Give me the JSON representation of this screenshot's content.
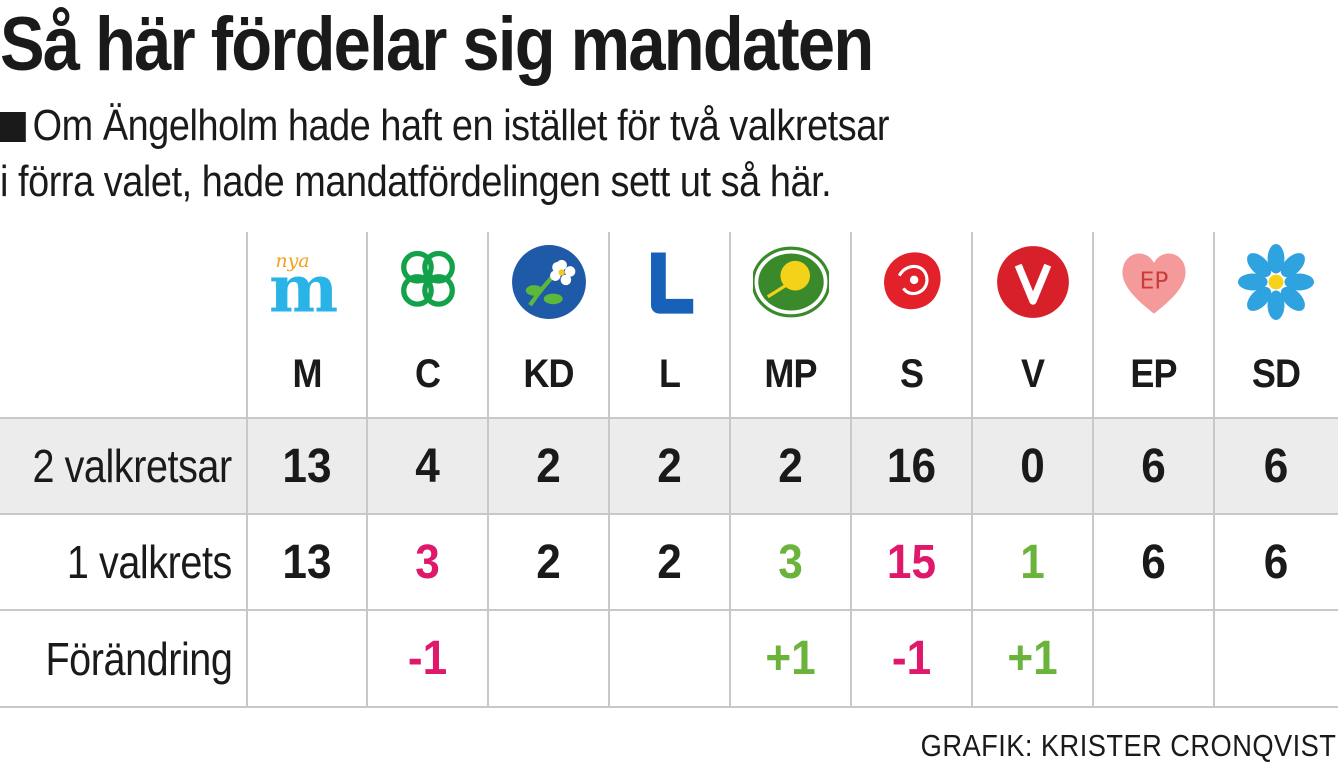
{
  "title": "Så här fördelar sig mandaten",
  "subtitle_line1": "Om Ängelholm hade haft en istället för två valkretsar",
  "subtitle_line2": "i förra valet, hade mandatfördelingen sett ut så här.",
  "credit": "GRAFIK: KRISTER CRONQVIST",
  "logo_texts": {
    "m_small": "nya",
    "m_big": "m",
    "ep": "EP"
  },
  "colors": {
    "positive": "#6ab43c",
    "negative": "#e0186c",
    "neutral": "#1a1a1a",
    "row_shade": "#ececec",
    "grid": "#c8c8c8"
  },
  "chart_data": {
    "type": "table",
    "columns": [
      "M",
      "C",
      "KD",
      "L",
      "MP",
      "S",
      "V",
      "EP",
      "SD"
    ],
    "rows": [
      {
        "label": "2 valkretsar",
        "values": [
          "13",
          "4",
          "2",
          "2",
          "2",
          "16",
          "0",
          "6",
          "6"
        ],
        "colors": [
          "neutral",
          "neutral",
          "neutral",
          "neutral",
          "neutral",
          "neutral",
          "neutral",
          "neutral",
          "neutral"
        ]
      },
      {
        "label": "1 valkrets",
        "values": [
          "13",
          "3",
          "2",
          "2",
          "3",
          "15",
          "1",
          "6",
          "6"
        ],
        "colors": [
          "neutral",
          "negative",
          "neutral",
          "neutral",
          "positive",
          "negative",
          "positive",
          "neutral",
          "neutral"
        ]
      },
      {
        "label": "Förändring",
        "values": [
          "",
          "-1",
          "",
          "",
          "+1",
          "-1",
          "+1",
          "",
          ""
        ],
        "colors": [
          "neutral",
          "negative",
          "neutral",
          "neutral",
          "positive",
          "negative",
          "positive",
          "neutral",
          "neutral"
        ]
      }
    ],
    "logos": [
      "nya-m-logo",
      "clover-logo",
      "anemone-logo",
      "l-logo",
      "dandelion-logo",
      "rose-logo",
      "carnation-logo",
      "heart-logo",
      "hepatica-logo"
    ]
  }
}
